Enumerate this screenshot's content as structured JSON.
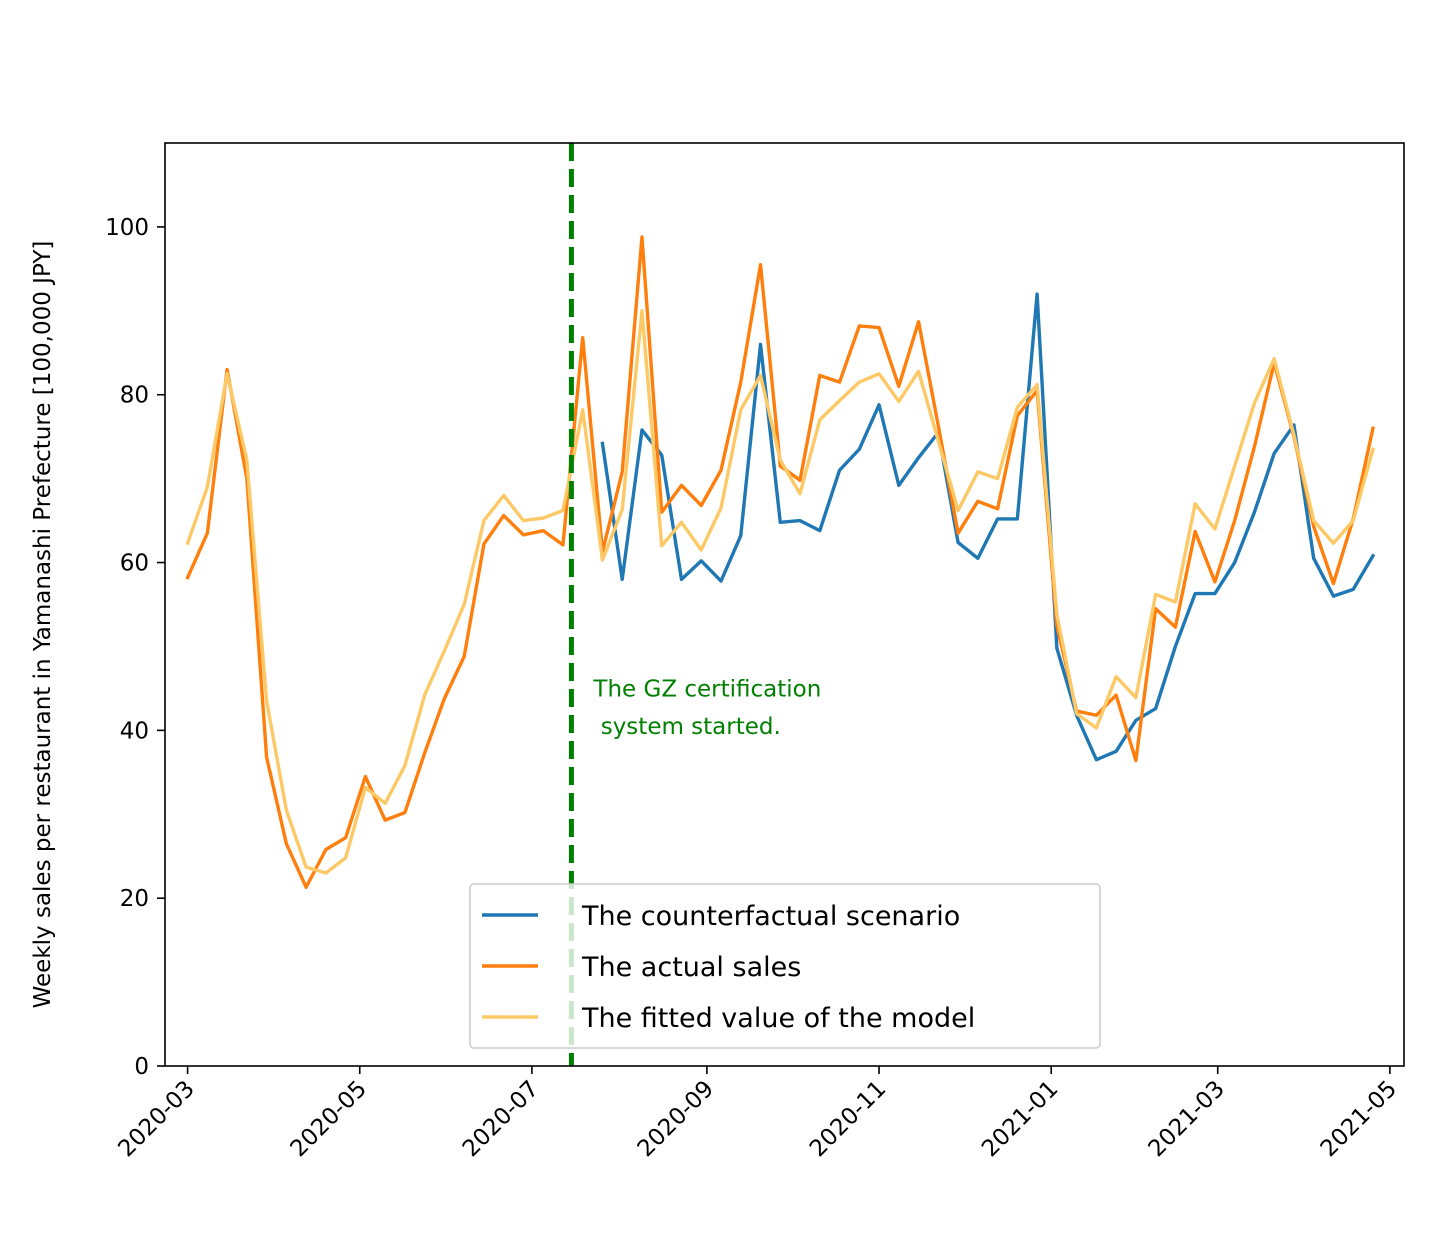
{
  "chart_data": {
    "type": "line",
    "ylabel": "Weekly sales per restaurant in Yamanashi Prefecture [100,000 JPY]",
    "xlabel": "",
    "title": "",
    "ylim": [
      0,
      110
    ],
    "xlim": [
      "2020-02-22",
      "2021-05-06"
    ],
    "grid": false,
    "legend_position": "lower center",
    "x_ticks": [
      "2020-03",
      "2020-05",
      "2020-07",
      "2020-09",
      "2020-11",
      "2021-01",
      "2021-03",
      "2021-05"
    ],
    "y_ticks": [
      0,
      20,
      40,
      60,
      80,
      100
    ],
    "event": {
      "date": "2020-07-15",
      "label_line1": "The GZ certification",
      "label_line2": " system started.",
      "color": "#008000",
      "label_y": [
        45,
        40.5
      ]
    },
    "series": [
      {
        "name": "The counterfactual scenario",
        "color": "#1f77b4",
        "x": [
          "2020-07-26",
          "2020-08-02",
          "2020-08-09",
          "2020-08-16",
          "2020-08-23",
          "2020-08-30",
          "2020-09-06",
          "2020-09-13",
          "2020-09-20",
          "2020-09-27",
          "2020-10-04",
          "2020-10-11",
          "2020-10-18",
          "2020-10-25",
          "2020-11-01",
          "2020-11-08",
          "2020-11-15",
          "2020-11-22",
          "2020-11-29",
          "2020-12-06",
          "2020-12-13",
          "2020-12-20",
          "2020-12-27",
          "2021-01-03",
          "2021-01-10",
          "2021-01-17",
          "2021-01-24",
          "2021-01-31",
          "2021-02-07",
          "2021-02-14",
          "2021-02-21",
          "2021-02-28",
          "2021-03-07",
          "2021-03-14",
          "2021-03-21",
          "2021-03-28",
          "2021-04-04",
          "2021-04-11",
          "2021-04-18",
          "2021-04-25"
        ],
        "y": [
          74.2,
          58.0,
          75.8,
          72.8,
          58.0,
          60.2,
          57.8,
          63.2,
          86.0,
          64.8,
          65.0,
          63.8,
          71.0,
          73.5,
          78.8,
          69.2,
          72.5,
          75.5,
          62.4,
          60.5,
          65.2,
          65.2,
          92.0,
          49.8,
          41.8,
          36.5,
          37.5,
          41.2,
          42.6,
          50.0,
          56.3,
          56.3,
          60.0,
          66.0,
          73.0,
          76.4,
          60.5,
          56.0,
          56.8,
          60.8
        ]
      },
      {
        "name": "The actual sales",
        "color": "#ff7f0e",
        "x": [
          "2020-03-01",
          "2020-03-08",
          "2020-03-15",
          "2020-03-22",
          "2020-03-29",
          "2020-04-05",
          "2020-04-12",
          "2020-04-19",
          "2020-04-26",
          "2020-05-03",
          "2020-05-10",
          "2020-05-17",
          "2020-05-24",
          "2020-05-31",
          "2020-06-07",
          "2020-06-14",
          "2020-06-21",
          "2020-06-28",
          "2020-07-05",
          "2020-07-12",
          "2020-07-19",
          "2020-07-26",
          "2020-08-02",
          "2020-08-09",
          "2020-08-16",
          "2020-08-23",
          "2020-08-30",
          "2020-09-06",
          "2020-09-13",
          "2020-09-20",
          "2020-09-27",
          "2020-10-04",
          "2020-10-11",
          "2020-10-18",
          "2020-10-25",
          "2020-11-01",
          "2020-11-08",
          "2020-11-15",
          "2020-11-22",
          "2020-11-29",
          "2020-12-06",
          "2020-12-13",
          "2020-12-20",
          "2020-12-27",
          "2021-01-03",
          "2021-01-10",
          "2021-01-17",
          "2021-01-24",
          "2021-01-31",
          "2021-02-07",
          "2021-02-14",
          "2021-02-21",
          "2021-02-28",
          "2021-03-07",
          "2021-03-14",
          "2021-03-21",
          "2021-03-28",
          "2021-04-04",
          "2021-04-11",
          "2021-04-18",
          "2021-04-25"
        ],
        "y": [
          58.2,
          63.5,
          83.0,
          70.0,
          36.8,
          26.5,
          21.3,
          25.8,
          27.2,
          34.5,
          29.3,
          30.2,
          37.3,
          43.8,
          48.8,
          62.2,
          65.6,
          63.3,
          63.8,
          62.1,
          86.8,
          61.3,
          70.8,
          98.8,
          66.0,
          69.2,
          66.8,
          71.0,
          81.5,
          95.5,
          71.5,
          69.8,
          82.3,
          81.5,
          88.2,
          88.0,
          81.0,
          88.7,
          76.3,
          63.5,
          67.3,
          66.4,
          77.5,
          80.5,
          52.5,
          42.3,
          41.8,
          44.2,
          36.4,
          54.5,
          52.3,
          63.7,
          57.7,
          65.0,
          73.8,
          83.8,
          75.0,
          64.3,
          57.5,
          65.2,
          76.0
        ]
      },
      {
        "name": "The fitted value of the model",
        "color": "#fdc966",
        "x": [
          "2020-03-01",
          "2020-03-08",
          "2020-03-15",
          "2020-03-22",
          "2020-03-29",
          "2020-04-05",
          "2020-04-12",
          "2020-04-19",
          "2020-04-26",
          "2020-05-03",
          "2020-05-10",
          "2020-05-17",
          "2020-05-24",
          "2020-05-31",
          "2020-06-07",
          "2020-06-14",
          "2020-06-21",
          "2020-06-28",
          "2020-07-05",
          "2020-07-12",
          "2020-07-19",
          "2020-07-26",
          "2020-08-02",
          "2020-08-09",
          "2020-08-16",
          "2020-08-23",
          "2020-08-30",
          "2020-09-06",
          "2020-09-13",
          "2020-09-20",
          "2020-09-27",
          "2020-10-04",
          "2020-10-11",
          "2020-10-18",
          "2020-10-25",
          "2020-11-01",
          "2020-11-08",
          "2020-11-15",
          "2020-11-22",
          "2020-11-29",
          "2020-12-06",
          "2020-12-13",
          "2020-12-20",
          "2020-12-27",
          "2021-01-03",
          "2021-01-10",
          "2021-01-17",
          "2021-01-24",
          "2021-01-31",
          "2021-02-07",
          "2021-02-14",
          "2021-02-21",
          "2021-02-28",
          "2021-03-07",
          "2021-03-14",
          "2021-03-21",
          "2021-03-28",
          "2021-04-04",
          "2021-04-11",
          "2021-04-18",
          "2021-04-25"
        ],
        "y": [
          62.3,
          69.0,
          82.5,
          72.2,
          43.5,
          30.5,
          23.7,
          23.0,
          24.8,
          33.2,
          31.3,
          35.8,
          44.2,
          49.5,
          55.0,
          65.0,
          68.0,
          65.0,
          65.3,
          66.2,
          78.2,
          60.3,
          66.3,
          90.0,
          62.0,
          64.8,
          61.5,
          66.5,
          78.2,
          82.3,
          72.2,
          68.2,
          77.0,
          79.3,
          81.5,
          82.5,
          79.2,
          82.8,
          74.5,
          66.2,
          70.8,
          70.0,
          78.5,
          81.2,
          53.8,
          42.0,
          40.3,
          46.4,
          43.9,
          56.2,
          55.3,
          67.0,
          64.0,
          71.5,
          79.0,
          84.3,
          75.2,
          65.0,
          62.3,
          65.0,
          73.5
        ]
      }
    ]
  }
}
